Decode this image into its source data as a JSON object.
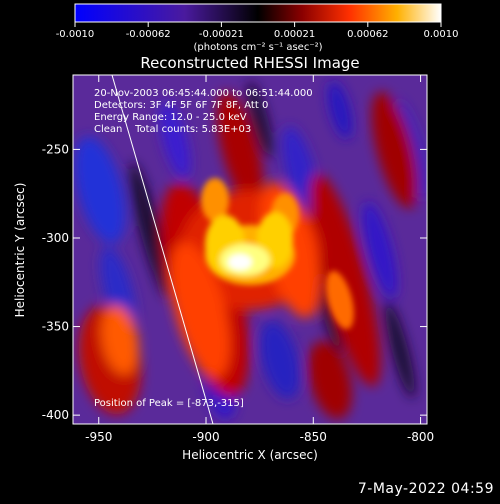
{
  "colorbar": {
    "tick_labels": [
      "-0.0010",
      "-0.00062",
      "-0.00021",
      "0.00021",
      "0.00062",
      "0.0010"
    ],
    "unit_label": "(photons cm⁻² s⁻¹ asec⁻²)",
    "range": [
      -0.001,
      0.001
    ]
  },
  "footer": {
    "date": "7-May-2022 04:59"
  },
  "chart_data": {
    "type": "heatmap",
    "title": "Reconstructed RHESSI Image",
    "xlabel": "Heliocentric X (arcsec)",
    "ylabel": "Heliocentric Y (arcsec)",
    "xlim": [
      -962,
      -797
    ],
    "ylim": [
      -405,
      -208
    ],
    "x_ticks": [
      -950,
      -900,
      -850,
      -800
    ],
    "y_ticks": [
      -250,
      -300,
      -350,
      -400
    ],
    "annotations": [
      "20-Nov-2003 06:45:44.000 to 06:51:44.000",
      "Detectors: 3F 4F 5F 6F 7F 8F, Att 0",
      "Energy Range: 12.0 - 25.0 keV",
      "Clean    Total counts: 5.83E+03"
    ],
    "peak_label": "Position of Peak = [-873,-315]",
    "peak": [
      -873,
      -315
    ]
  }
}
